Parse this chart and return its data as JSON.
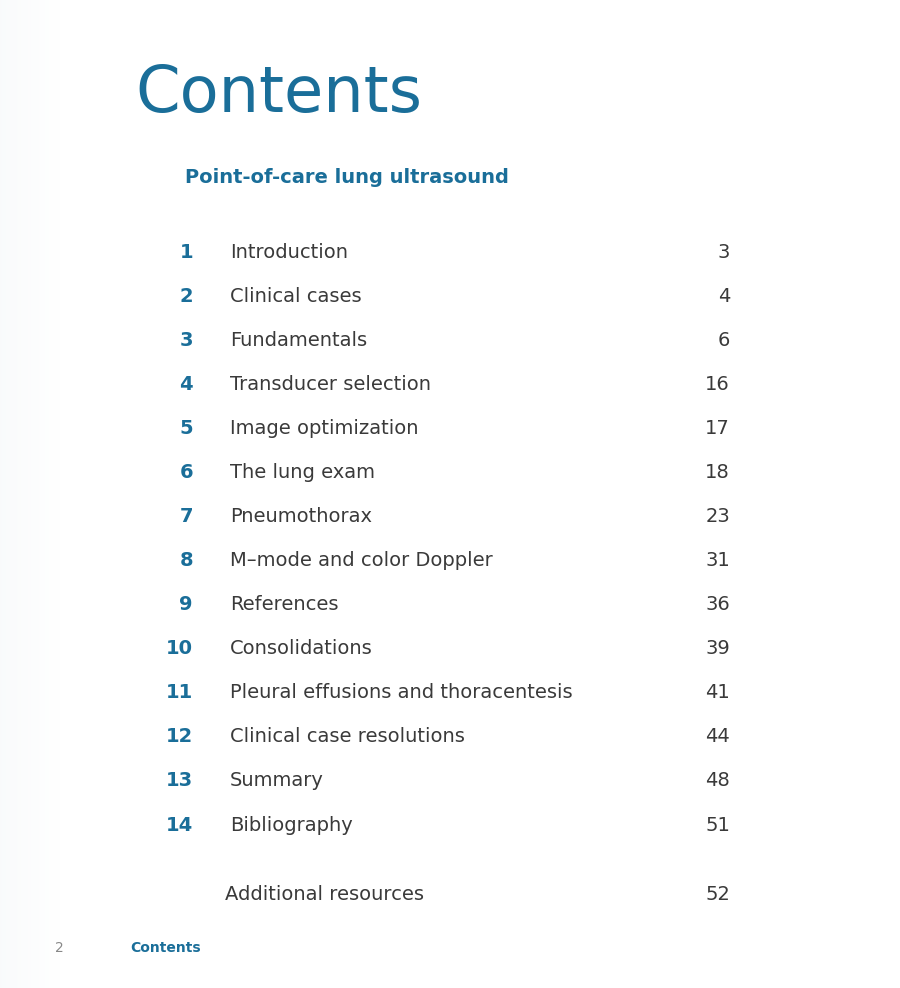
{
  "bg_color": "#ffffff",
  "page_bg": "#ffffff",
  "title": "Contents",
  "title_color": "#1a6e99",
  "title_fontsize": 46,
  "subtitle": "Point-of-care lung ultrasound",
  "subtitle_color": "#1a6e99",
  "subtitle_fontsize": 14,
  "toc_entries": [
    {
      "num": "1",
      "title": "Introduction",
      "page": "3"
    },
    {
      "num": "2",
      "title": "Clinical cases",
      "page": "4"
    },
    {
      "num": "3",
      "title": "Fundamentals",
      "page": "6"
    },
    {
      "num": "4",
      "title": "Transducer selection",
      "page": "16"
    },
    {
      "num": "5",
      "title": "Image optimization",
      "page": "17"
    },
    {
      "num": "6",
      "title": "The lung exam",
      "page": "18"
    },
    {
      "num": "7",
      "title": "Pneumothorax",
      "page": "23"
    },
    {
      "num": "8",
      "title": "M–mode and color Doppler",
      "page": "31"
    },
    {
      "num": "9",
      "title": "References",
      "page": "36"
    },
    {
      "num": "10",
      "title": "Consolidations",
      "page": "39"
    },
    {
      "num": "11",
      "title": "Pleural effusions and thoracentesis",
      "page": "41"
    },
    {
      "num": "12",
      "title": "Clinical case resolutions",
      "page": "44"
    },
    {
      "num": "13",
      "title": "Summary",
      "page": "48"
    },
    {
      "num": "14",
      "title": "Bibliography",
      "page": "51"
    }
  ],
  "extra_entry": {
    "title": "Additional resources",
    "page": "52"
  },
  "num_color": "#1a6e99",
  "title_text_color": "#3a3a3a",
  "page_num_color": "#3a3a3a",
  "footer_page": "2",
  "footer_text": "Contents",
  "footer_color": "#1a6e99",
  "footer_page_color": "#888888",
  "left_grad_color": "#e0e8ee",
  "toc_fontsize": 14,
  "toc_num_fontsize": 14,
  "page_num_fontsize": 14
}
